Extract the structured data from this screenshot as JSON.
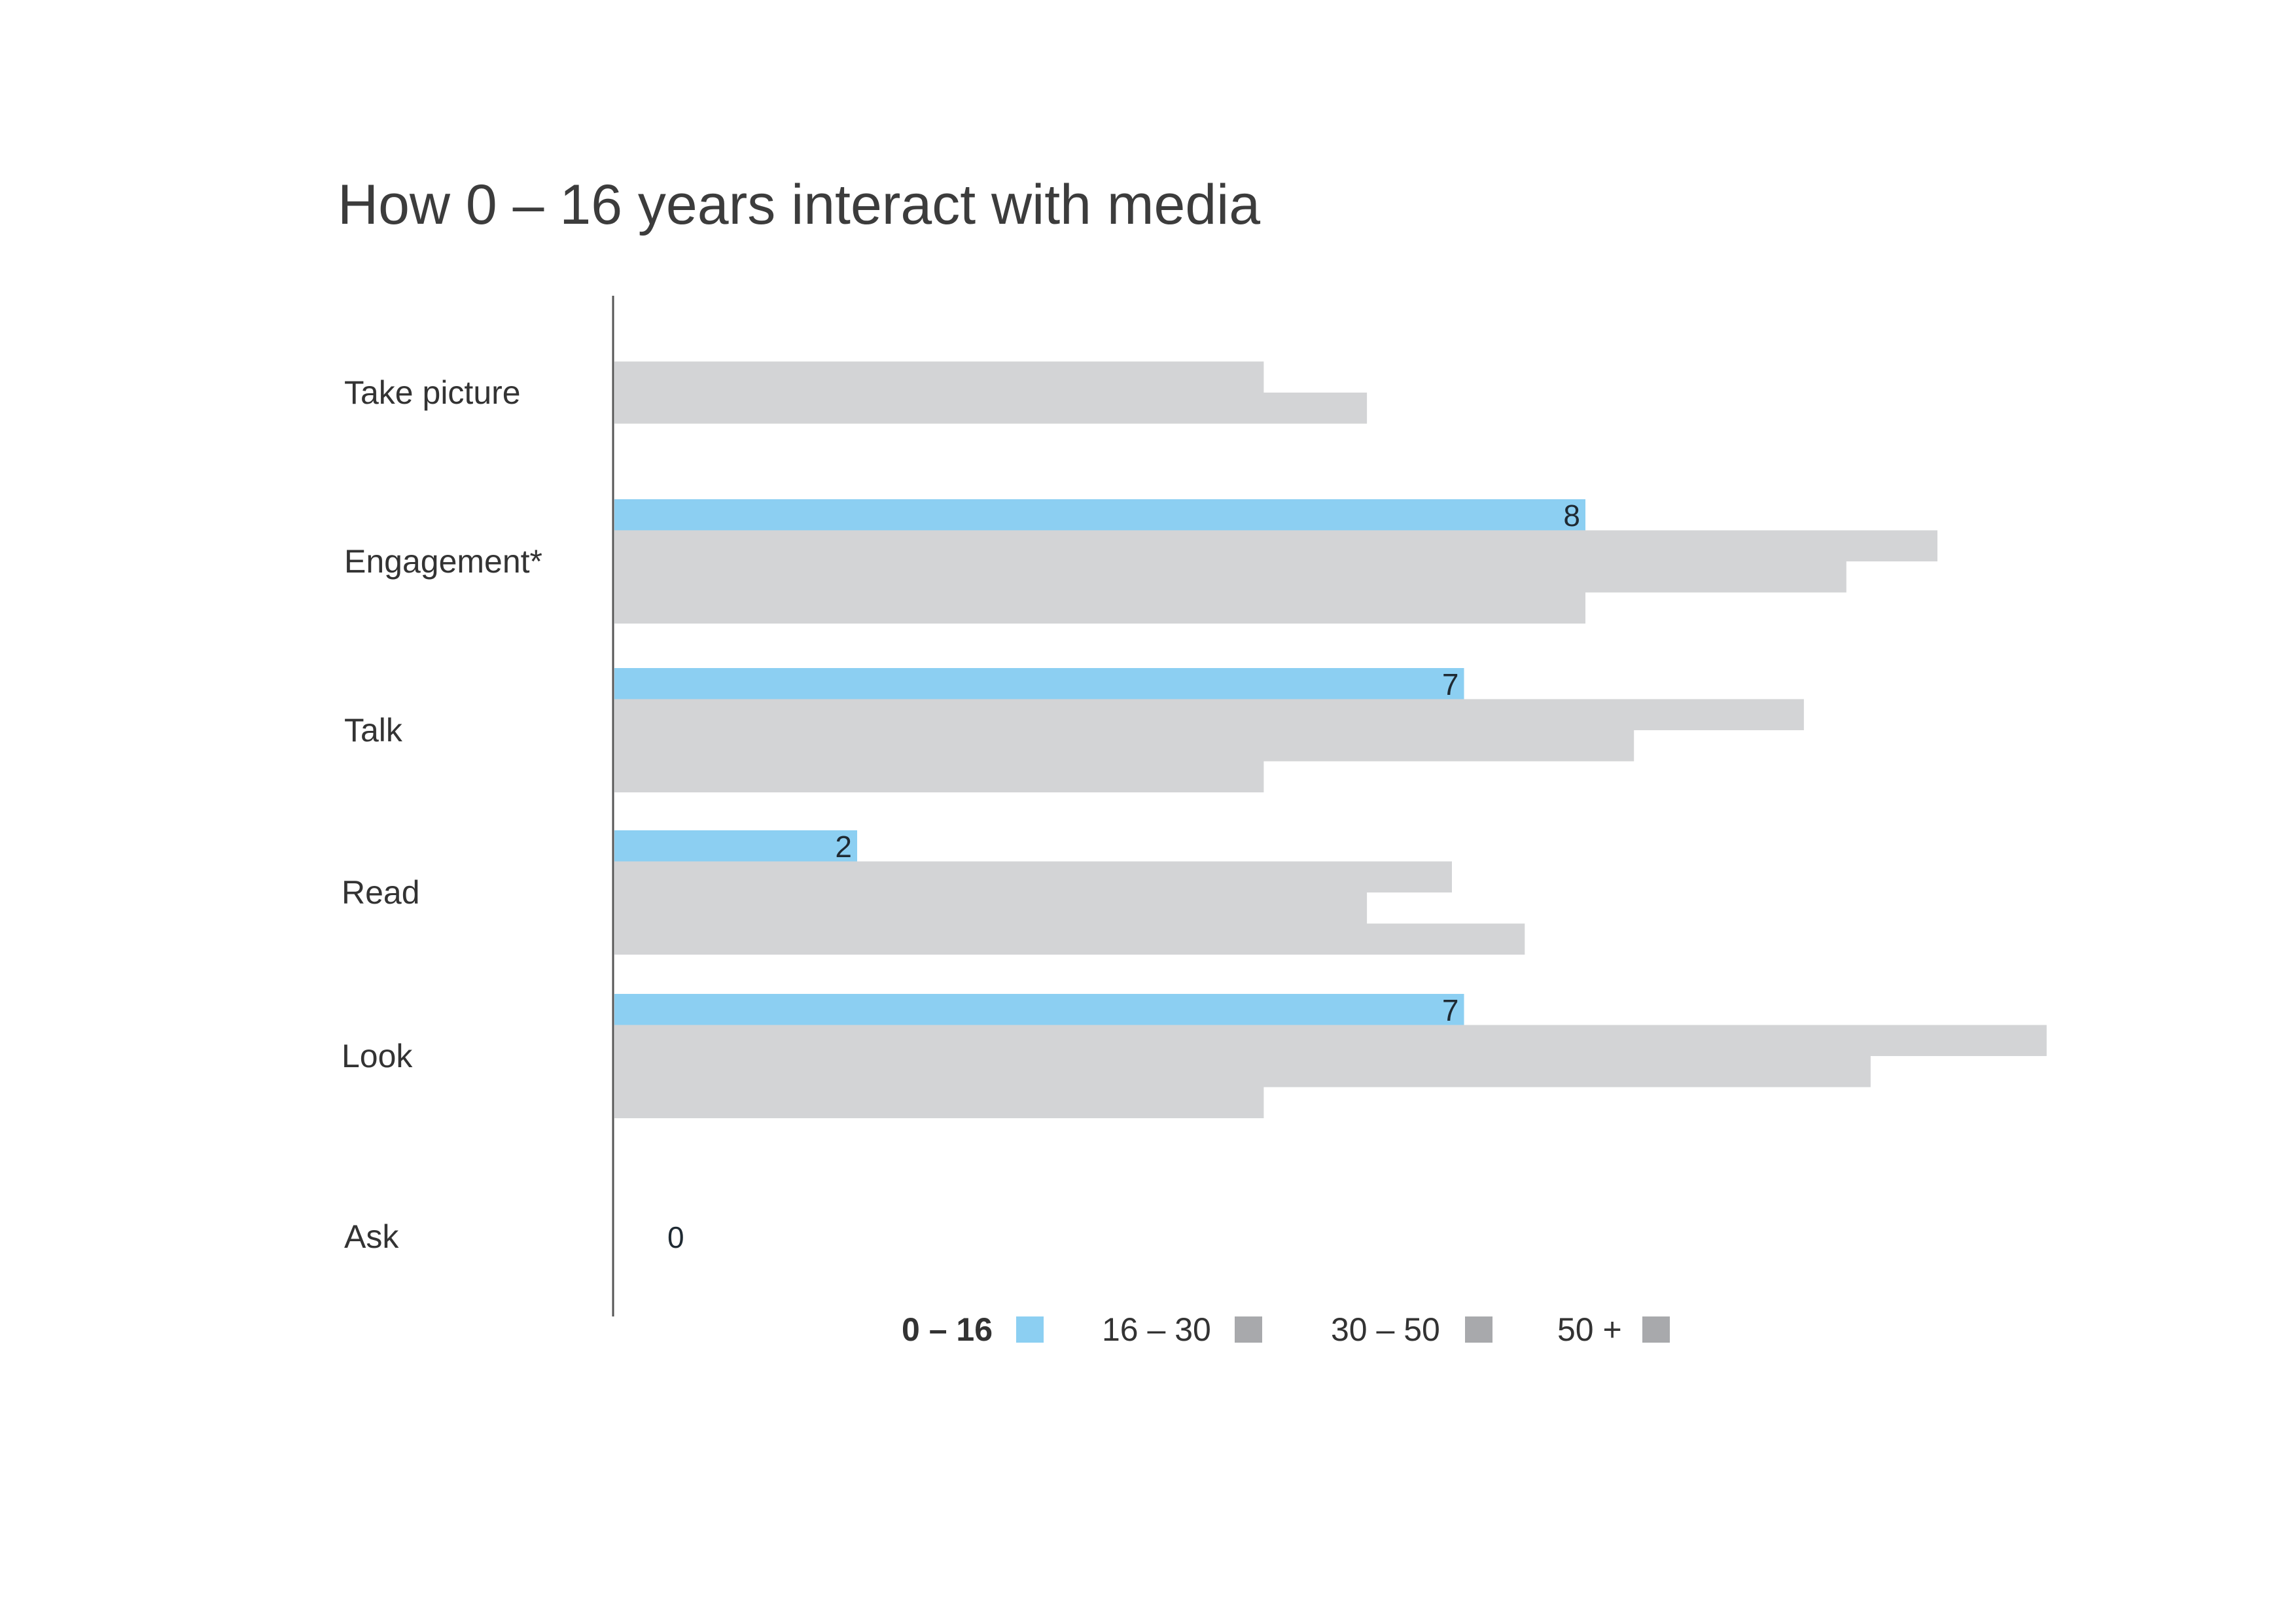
{
  "chart_data": {
    "type": "bar",
    "orientation": "horizontal",
    "title": "How 0 – 16 years interact with media",
    "categories": [
      "Take picture",
      "Engagement*",
      "Talk",
      "Read",
      "Look",
      "Ask"
    ],
    "series": [
      {
        "name": "0 – 16",
        "color": "#8ccff2",
        "values": [
          null,
          8,
          7,
          2,
          7,
          0
        ]
      },
      {
        "name": "16 – 30",
        "color": "#d3d4d6",
        "values": [
          null,
          10.9,
          9.8,
          6.9,
          11.8,
          null
        ]
      },
      {
        "name": "30 – 50",
        "color": "#d3d4d6",
        "values": [
          5.35,
          10.15,
          8.4,
          6.2,
          10.35,
          null
        ]
      },
      {
        "name": "50 +",
        "color": "#d3d4d6",
        "values": [
          6.2,
          8,
          5.35,
          7.5,
          5.35,
          null
        ]
      }
    ],
    "data_labels": [
      "",
      "8",
      "7",
      "2",
      "7",
      "0"
    ],
    "legend": {
      "placement": "bottom-center",
      "swatch_colors": [
        "#8ccff2",
        "#a8a9ac",
        "#a8a9ac",
        "#a8a9ac"
      ]
    },
    "xlim": [
      0,
      12
    ],
    "grid": false
  }
}
